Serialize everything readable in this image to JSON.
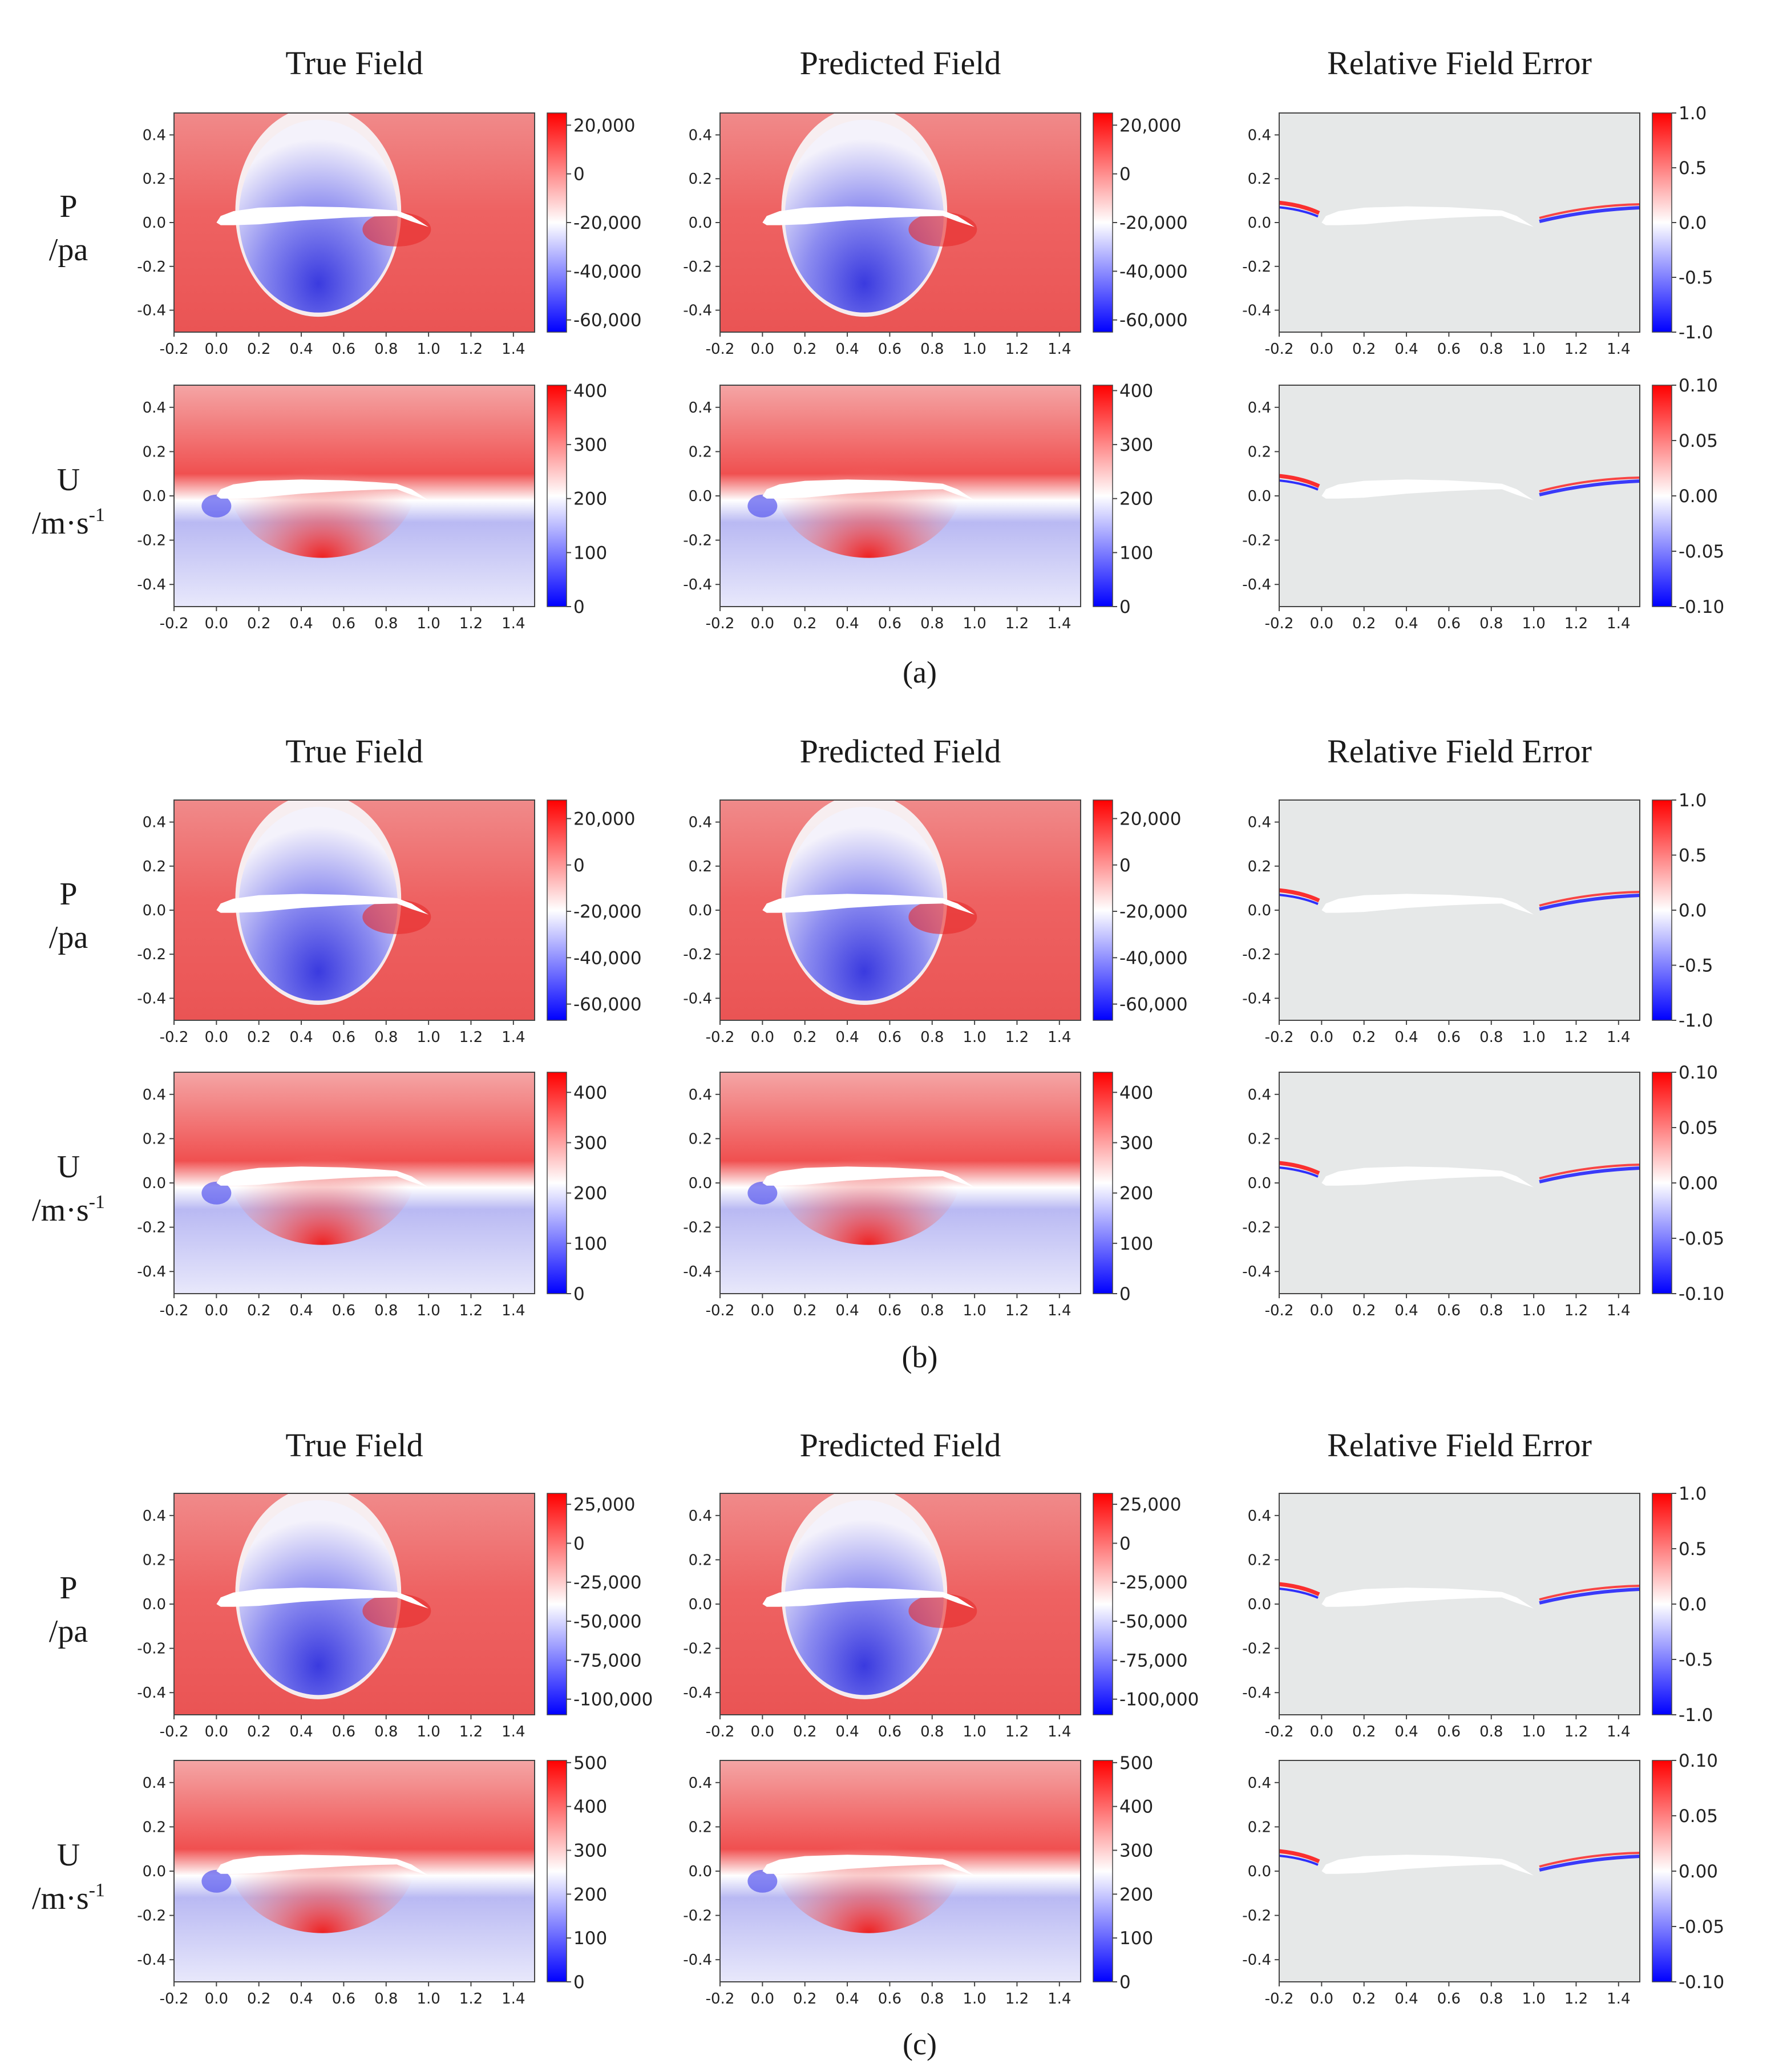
{
  "figure": {
    "column_titles": [
      "True Field",
      "Predicted Field",
      "Relative Field Error"
    ],
    "row_labels": {
      "P": {
        "line1": "P",
        "line2": "/pa"
      },
      "U": {
        "line1": "U",
        "line2": "/m·s",
        "sup": "-1"
      }
    },
    "colors": {
      "cmap_low": "#0000ff",
      "cmap_mid": "#ffffff",
      "cmap_high": "#ff0000",
      "error_bg": "#e6e8e8",
      "airfoil": "#ffffff"
    }
  },
  "chart_data": [
    {
      "caption": "(a)",
      "rows": [
        {
          "variable": "P",
          "unit": "pa",
          "panels": [
            {
              "type": "heatmap",
              "title": "True Field",
              "xlim": [
                -0.2,
                1.5
              ],
              "ylim": [
                -0.5,
                0.5
              ],
              "x_ticks": [
                "-0.2",
                "0.0",
                "0.2",
                "0.4",
                "0.6",
                "0.8",
                "1.0",
                "1.2",
                "1.4"
              ],
              "y_ticks": [
                "0.4",
                "0.2",
                "0.0",
                "-0.2",
                "-0.4"
              ],
              "colorbar": {
                "min": -65000,
                "max": 25000,
                "ticks": [
                  "20,000",
                  "0",
                  "-20,000",
                  "-40,000",
                  "-60,000"
                ]
              }
            },
            {
              "type": "heatmap",
              "title": "Predicted Field",
              "xlim": [
                -0.2,
                1.5
              ],
              "ylim": [
                -0.5,
                0.5
              ],
              "x_ticks": [
                "-0.2",
                "0.0",
                "0.2",
                "0.4",
                "0.6",
                "0.8",
                "1.0",
                "1.2",
                "1.4"
              ],
              "y_ticks": [
                "0.4",
                "0.2",
                "0.0",
                "-0.2",
                "-0.4"
              ],
              "colorbar": {
                "min": -65000,
                "max": 25000,
                "ticks": [
                  "20,000",
                  "0",
                  "-20,000",
                  "-40,000",
                  "-60,000"
                ]
              }
            },
            {
              "type": "heatmap",
              "title": "Relative Field Error",
              "xlim": [
                -0.2,
                1.5
              ],
              "ylim": [
                -0.5,
                0.5
              ],
              "x_ticks": [
                "-0.2",
                "0.0",
                "0.2",
                "0.4",
                "0.6",
                "0.8",
                "1.0",
                "1.2",
                "1.4"
              ],
              "y_ticks": [
                "0.4",
                "0.2",
                "0.0",
                "-0.2",
                "-0.4"
              ],
              "colorbar": {
                "min": -1.0,
                "max": 1.0,
                "ticks": [
                  "1.0",
                  "0.5",
                  "0.0",
                  "-0.5",
                  "-1.0"
                ]
              }
            }
          ]
        },
        {
          "variable": "U",
          "unit": "m·s-1",
          "panels": [
            {
              "type": "heatmap",
              "title": "True Field",
              "xlim": [
                -0.2,
                1.5
              ],
              "ylim": [
                -0.5,
                0.5
              ],
              "x_ticks": [
                "-0.2",
                "0.0",
                "0.2",
                "0.4",
                "0.6",
                "0.8",
                "1.0",
                "1.2",
                "1.4"
              ],
              "y_ticks": [
                "0.4",
                "0.2",
                "0.0",
                "-0.2",
                "-0.4"
              ],
              "colorbar": {
                "min": 0,
                "max": 410,
                "ticks": [
                  "400",
                  "300",
                  "200",
                  "100",
                  "0"
                ]
              }
            },
            {
              "type": "heatmap",
              "title": "Predicted Field",
              "xlim": [
                -0.2,
                1.5
              ],
              "ylim": [
                -0.5,
                0.5
              ],
              "x_ticks": [
                "-0.2",
                "0.0",
                "0.2",
                "0.4",
                "0.6",
                "0.8",
                "1.0",
                "1.2",
                "1.4"
              ],
              "y_ticks": [
                "0.4",
                "0.2",
                "0.0",
                "-0.2",
                "-0.4"
              ],
              "colorbar": {
                "min": 0,
                "max": 410,
                "ticks": [
                  "400",
                  "300",
                  "200",
                  "100",
                  "0"
                ]
              }
            },
            {
              "type": "heatmap",
              "title": "Relative Field Error",
              "xlim": [
                -0.2,
                1.5
              ],
              "ylim": [
                -0.5,
                0.5
              ],
              "x_ticks": [
                "-0.2",
                "0.0",
                "0.2",
                "0.4",
                "0.6",
                "0.8",
                "1.0",
                "1.2",
                "1.4"
              ],
              "y_ticks": [
                "0.4",
                "0.2",
                "0.0",
                "-0.2",
                "-0.4"
              ],
              "colorbar": {
                "min": -0.1,
                "max": 0.1,
                "ticks": [
                  "0.10",
                  "0.05",
                  "0.00",
                  "-0.05",
                  "-0.10"
                ]
              }
            }
          ]
        }
      ]
    },
    {
      "caption": "(b)",
      "rows": [
        {
          "variable": "P",
          "unit": "pa",
          "panels": [
            {
              "type": "heatmap",
              "title": "True Field",
              "xlim": [
                -0.2,
                1.5
              ],
              "ylim": [
                -0.5,
                0.5
              ],
              "x_ticks": [
                "-0.2",
                "0.0",
                "0.2",
                "0.4",
                "0.6",
                "0.8",
                "1.0",
                "1.2",
                "1.4"
              ],
              "y_ticks": [
                "0.4",
                "0.2",
                "0.0",
                "-0.2",
                "-0.4"
              ],
              "colorbar": {
                "min": -67000,
                "max": 28000,
                "ticks": [
                  "20,000",
                  "0",
                  "-20,000",
                  "-40,000",
                  "-60,000"
                ]
              }
            },
            {
              "type": "heatmap",
              "title": "Predicted Field",
              "xlim": [
                -0.2,
                1.5
              ],
              "ylim": [
                -0.5,
                0.5
              ],
              "x_ticks": [
                "-0.2",
                "0.0",
                "0.2",
                "0.4",
                "0.6",
                "0.8",
                "1.0",
                "1.2",
                "1.4"
              ],
              "y_ticks": [
                "0.4",
                "0.2",
                "0.0",
                "-0.2",
                "-0.4"
              ],
              "colorbar": {
                "min": -67000,
                "max": 28000,
                "ticks": [
                  "20,000",
                  "0",
                  "-20,000",
                  "-40,000",
                  "-60,000"
                ]
              }
            },
            {
              "type": "heatmap",
              "title": "Relative Field Error",
              "xlim": [
                -0.2,
                1.5
              ],
              "ylim": [
                -0.5,
                0.5
              ],
              "x_ticks": [
                "-0.2",
                "0.0",
                "0.2",
                "0.4",
                "0.6",
                "0.8",
                "1.0",
                "1.2",
                "1.4"
              ],
              "y_ticks": [
                "0.4",
                "0.2",
                "0.0",
                "-0.2",
                "-0.4"
              ],
              "colorbar": {
                "min": -1.0,
                "max": 1.0,
                "ticks": [
                  "1.0",
                  "0.5",
                  "0.0",
                  "-0.5",
                  "-1.0"
                ]
              }
            }
          ]
        },
        {
          "variable": "U",
          "unit": "m·s-1",
          "panels": [
            {
              "type": "heatmap",
              "title": "True Field",
              "xlim": [
                -0.2,
                1.5
              ],
              "ylim": [
                -0.5,
                0.5
              ],
              "x_ticks": [
                "-0.2",
                "0.0",
                "0.2",
                "0.4",
                "0.6",
                "0.8",
                "1.0",
                "1.2",
                "1.4"
              ],
              "y_ticks": [
                "0.4",
                "0.2",
                "0.0",
                "-0.2",
                "-0.4"
              ],
              "colorbar": {
                "min": 0,
                "max": 440,
                "ticks": [
                  "400",
                  "300",
                  "200",
                  "100",
                  "0"
                ]
              }
            },
            {
              "type": "heatmap",
              "title": "Predicted Field",
              "xlim": [
                -0.2,
                1.5
              ],
              "ylim": [
                -0.5,
                0.5
              ],
              "x_ticks": [
                "-0.2",
                "0.0",
                "0.2",
                "0.4",
                "0.6",
                "0.8",
                "1.0",
                "1.2",
                "1.4"
              ],
              "y_ticks": [
                "0.4",
                "0.2",
                "0.0",
                "-0.2",
                "-0.4"
              ],
              "colorbar": {
                "min": 0,
                "max": 440,
                "ticks": [
                  "400",
                  "300",
                  "200",
                  "100",
                  "0"
                ]
              }
            },
            {
              "type": "heatmap",
              "title": "Relative Field Error",
              "xlim": [
                -0.2,
                1.5
              ],
              "ylim": [
                -0.5,
                0.5
              ],
              "x_ticks": [
                "-0.2",
                "0.0",
                "0.2",
                "0.4",
                "0.6",
                "0.8",
                "1.0",
                "1.2",
                "1.4"
              ],
              "y_ticks": [
                "0.4",
                "0.2",
                "0.0",
                "-0.2",
                "-0.4"
              ],
              "colorbar": {
                "min": -0.1,
                "max": 0.1,
                "ticks": [
                  "0.10",
                  "0.05",
                  "0.00",
                  "-0.05",
                  "-0.10"
                ]
              }
            }
          ]
        }
      ]
    },
    {
      "caption": "(c)",
      "rows": [
        {
          "variable": "P",
          "unit": "pa",
          "panels": [
            {
              "type": "heatmap",
              "title": "True Field",
              "xlim": [
                -0.2,
                1.5
              ],
              "ylim": [
                -0.5,
                0.5
              ],
              "x_ticks": [
                "-0.2",
                "0.0",
                "0.2",
                "0.4",
                "0.6",
                "0.8",
                "1.0",
                "1.2",
                "1.4"
              ],
              "y_ticks": [
                "0.4",
                "0.2",
                "0.0",
                "-0.2",
                "-0.4"
              ],
              "colorbar": {
                "min": -110000,
                "max": 32000,
                "ticks": [
                  "25,000",
                  "0",
                  "-25,000",
                  "-50,000",
                  "-75,000",
                  "-100,000"
                ]
              }
            },
            {
              "type": "heatmap",
              "title": "Predicted Field",
              "xlim": [
                -0.2,
                1.5
              ],
              "ylim": [
                -0.5,
                0.5
              ],
              "x_ticks": [
                "-0.2",
                "0.0",
                "0.2",
                "0.4",
                "0.6",
                "0.8",
                "1.0",
                "1.2",
                "1.4"
              ],
              "y_ticks": [
                "0.4",
                "0.2",
                "0.0",
                "-0.2",
                "-0.4"
              ],
              "colorbar": {
                "min": -110000,
                "max": 32000,
                "ticks": [
                  "25,000",
                  "0",
                  "-25,000",
                  "-50,000",
                  "-75,000",
                  "-100,000"
                ]
              }
            },
            {
              "type": "heatmap",
              "title": "Relative Field Error",
              "xlim": [
                -0.2,
                1.5
              ],
              "ylim": [
                -0.5,
                0.5
              ],
              "x_ticks": [
                "-0.2",
                "0.0",
                "0.2",
                "0.4",
                "0.6",
                "0.8",
                "1.0",
                "1.2",
                "1.4"
              ],
              "y_ticks": [
                "0.4",
                "0.2",
                "0.0",
                "-0.2",
                "-0.4"
              ],
              "colorbar": {
                "min": -1.0,
                "max": 1.0,
                "ticks": [
                  "1.0",
                  "0.5",
                  "0.0",
                  "-0.5",
                  "-1.0"
                ]
              }
            }
          ]
        },
        {
          "variable": "U",
          "unit": "m·s-1",
          "panels": [
            {
              "type": "heatmap",
              "title": "True Field",
              "xlim": [
                -0.2,
                1.5
              ],
              "ylim": [
                -0.5,
                0.5
              ],
              "x_ticks": [
                "-0.2",
                "0.0",
                "0.2",
                "0.4",
                "0.6",
                "0.8",
                "1.0",
                "1.2",
                "1.4"
              ],
              "y_ticks": [
                "0.4",
                "0.2",
                "0.0",
                "-0.2",
                "-0.4"
              ],
              "colorbar": {
                "min": 0,
                "max": 505,
                "ticks": [
                  "500",
                  "400",
                  "300",
                  "200",
                  "100",
                  "0"
                ]
              }
            },
            {
              "type": "heatmap",
              "title": "Predicted Field",
              "xlim": [
                -0.2,
                1.5
              ],
              "ylim": [
                -0.5,
                0.5
              ],
              "x_ticks": [
                "-0.2",
                "0.0",
                "0.2",
                "0.4",
                "0.6",
                "0.8",
                "1.0",
                "1.2",
                "1.4"
              ],
              "y_ticks": [
                "0.4",
                "0.2",
                "0.0",
                "-0.2",
                "-0.4"
              ],
              "colorbar": {
                "min": 0,
                "max": 505,
                "ticks": [
                  "500",
                  "400",
                  "300",
                  "200",
                  "100",
                  "0"
                ]
              }
            },
            {
              "type": "heatmap",
              "title": "Relative Field Error",
              "xlim": [
                -0.2,
                1.5
              ],
              "ylim": [
                -0.5,
                0.5
              ],
              "x_ticks": [
                "-0.2",
                "0.0",
                "0.2",
                "0.4",
                "0.6",
                "0.8",
                "1.0",
                "1.2",
                "1.4"
              ],
              "y_ticks": [
                "0.4",
                "0.2",
                "0.0",
                "-0.2",
                "-0.4"
              ],
              "colorbar": {
                "min": -0.1,
                "max": 0.1,
                "ticks": [
                  "0.10",
                  "0.05",
                  "0.00",
                  "-0.05",
                  "-0.10"
                ]
              }
            }
          ]
        }
      ]
    }
  ]
}
